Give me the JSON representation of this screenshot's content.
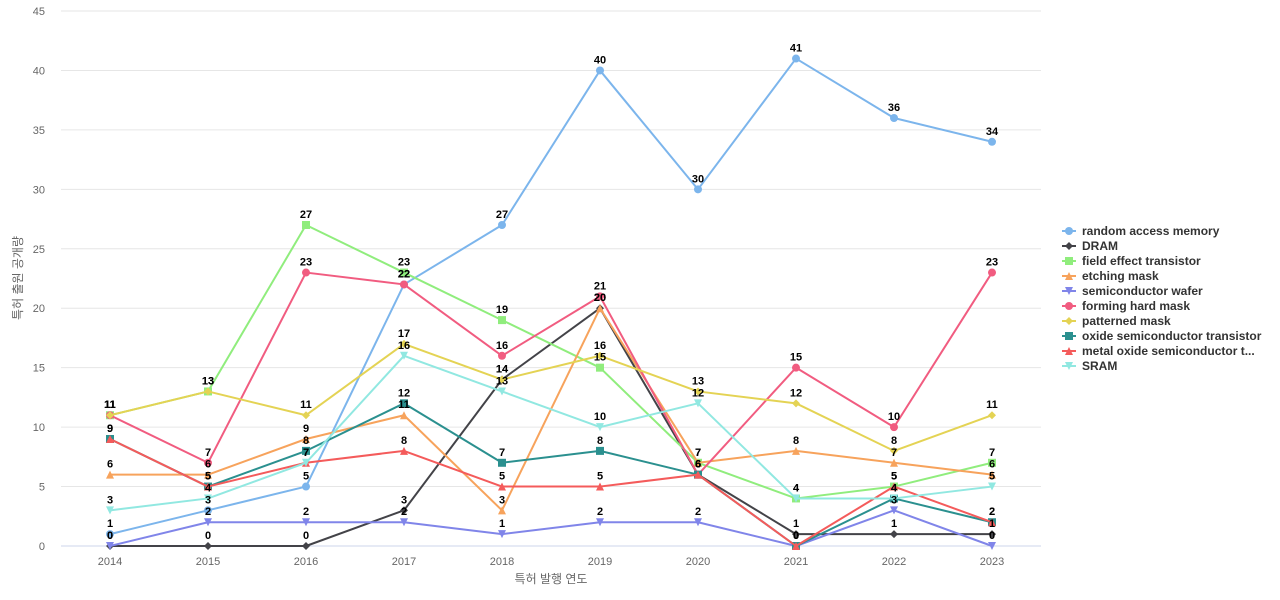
{
  "chart_data": {
    "type": "line",
    "xlabel": "특허 발행 연도",
    "ylabel": "특허 출원 공개량",
    "ylim": [
      0,
      45
    ],
    "yticks": [
      0,
      5,
      10,
      15,
      20,
      25,
      30,
      35,
      40,
      45
    ],
    "grid": true,
    "legend_position": "right",
    "categories": [
      "2014",
      "2015",
      "2016",
      "2017",
      "2018",
      "2019",
      "2020",
      "2021",
      "2022",
      "2023"
    ],
    "series": [
      {
        "name": "random access memory",
        "color": "#7cb5ec",
        "marker": "circle",
        "values": [
          1,
          3,
          5,
          22,
          27,
          40,
          30,
          41,
          36,
          34
        ]
      },
      {
        "name": "DRAM",
        "color": "#434348",
        "marker": "diamond",
        "values": [
          0,
          0,
          0,
          3,
          14,
          20,
          6,
          1,
          1,
          1
        ]
      },
      {
        "name": "field effect transistor",
        "color": "#90ed7d",
        "marker": "square",
        "values": [
          11,
          13,
          27,
          23,
          19,
          15,
          7,
          4,
          5,
          7
        ]
      },
      {
        "name": "etching mask",
        "color": "#f7a35c",
        "marker": "triangle",
        "values": [
          6,
          6,
          9,
          11,
          3,
          20,
          7,
          8,
          7,
          6
        ]
      },
      {
        "name": "semiconductor wafer",
        "color": "#8085e9",
        "marker": "triangle-down",
        "values": [
          0,
          2,
          2,
          2,
          1,
          2,
          2,
          0,
          3,
          0
        ]
      },
      {
        "name": "forming hard mask",
        "color": "#f15c80",
        "marker": "circle",
        "values": [
          11,
          7,
          23,
          22,
          16,
          21,
          6,
          15,
          10,
          23
        ]
      },
      {
        "name": "patterned mask",
        "color": "#e4d354",
        "marker": "diamond",
        "values": [
          11,
          13,
          11,
          17,
          14,
          16,
          13,
          12,
          8,
          11
        ]
      },
      {
        "name": "oxide semiconductor transistor",
        "color": "#2b908f",
        "marker": "square",
        "values": [
          9,
          5,
          8,
          12,
          7,
          8,
          6,
          0,
          4,
          2
        ]
      },
      {
        "name": "metal oxide semiconductor t...",
        "color": "#f45b5b",
        "marker": "triangle",
        "values": [
          9,
          5,
          7,
          8,
          5,
          5,
          6,
          0,
          5,
          2
        ]
      },
      {
        "name": "SRAM",
        "color": "#91e8e1",
        "marker": "triangle-down",
        "values": [
          3,
          4,
          7,
          16,
          13,
          10,
          12,
          4,
          4,
          5
        ]
      }
    ]
  }
}
